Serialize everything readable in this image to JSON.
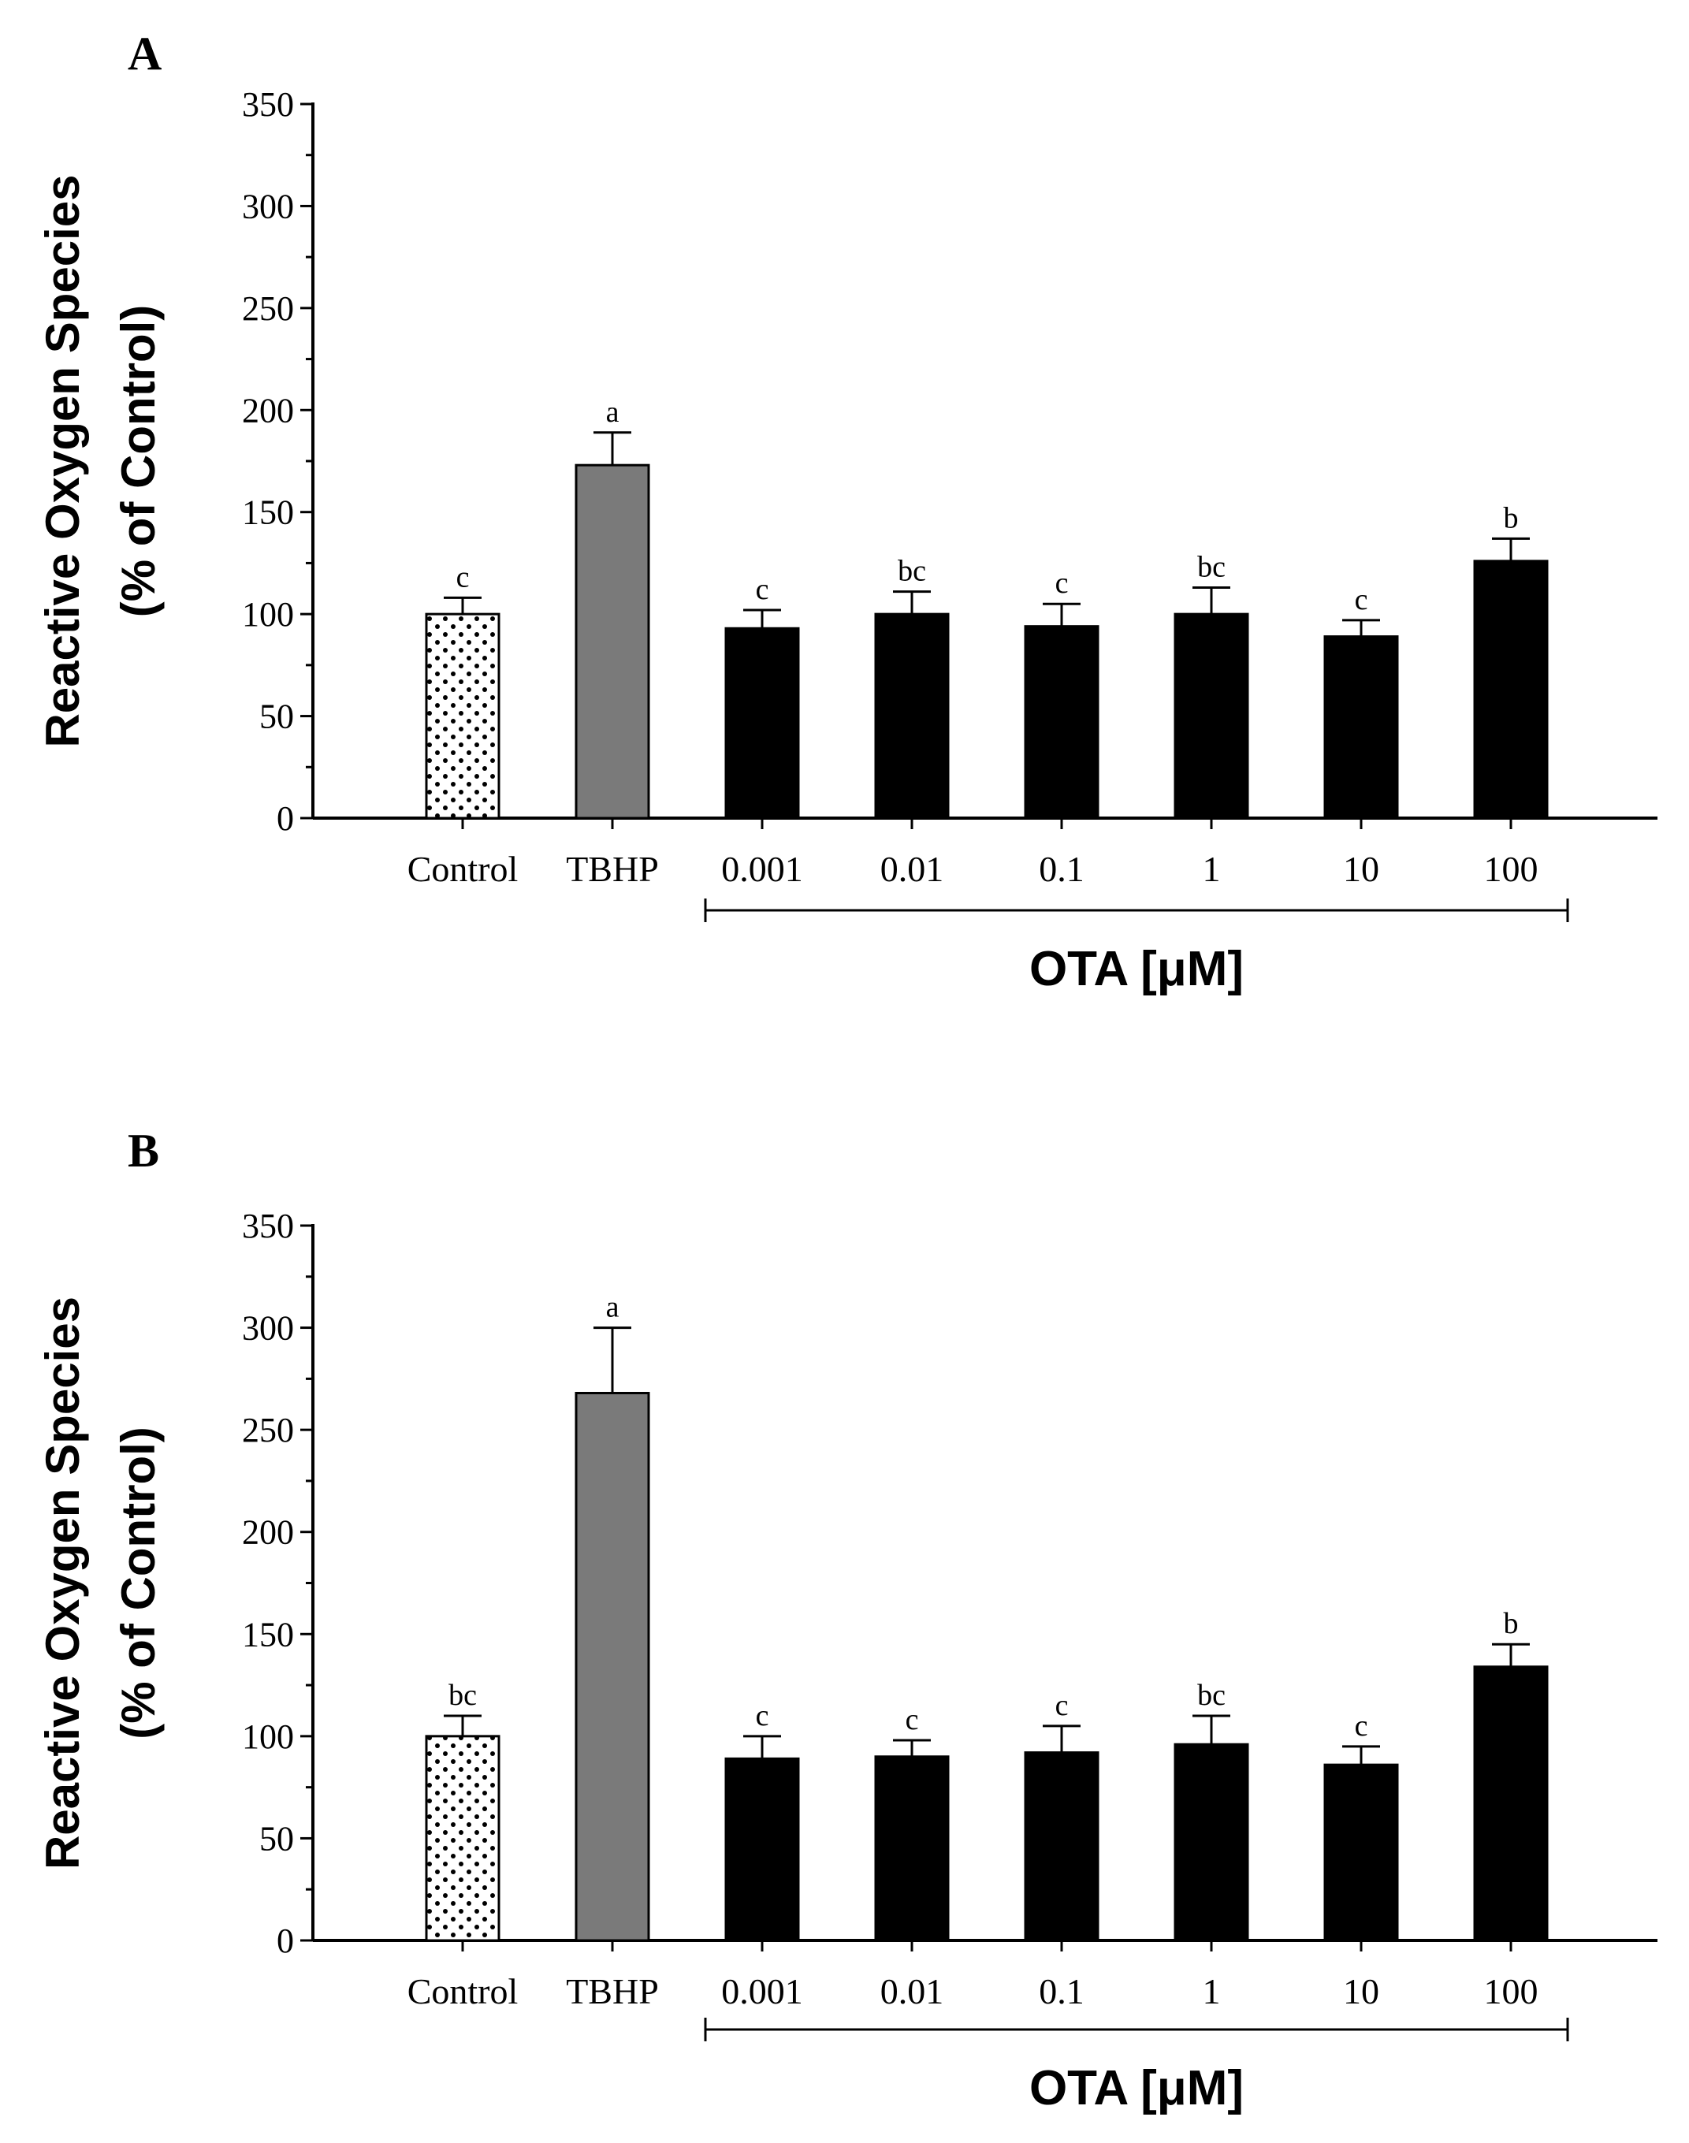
{
  "chart_data": [
    {
      "type": "bar",
      "panel": "A",
      "ylabel_line1": "Reactive Oxygen Species",
      "ylabel_line2": "(% of Control)",
      "ylim": [
        0,
        350
      ],
      "yticks": [
        0,
        50,
        100,
        150,
        200,
        250,
        300,
        350
      ],
      "categories": [
        "Control",
        "TBHP",
        "0.001",
        "0.01",
        "0.1",
        "1",
        "10",
        "100"
      ],
      "values": [
        100,
        173,
        93,
        100,
        94,
        100,
        89,
        126
      ],
      "errors": [
        8,
        16,
        9,
        11,
        11,
        13,
        8,
        11
      ],
      "significance": [
        "c",
        "a",
        "c",
        "bc",
        "c",
        "bc",
        "c",
        "b"
      ],
      "fills": [
        "dotted",
        "#7a7a7a",
        "#000000",
        "#000000",
        "#000000",
        "#000000",
        "#000000",
        "#000000"
      ],
      "group_label": "OTA [μM]",
      "group_range": [
        2,
        7
      ]
    },
    {
      "type": "bar",
      "panel": "B",
      "ylabel_line1": "Reactive Oxygen Species",
      "ylabel_line2": "(% of Control)",
      "ylim": [
        0,
        350
      ],
      "yticks": [
        0,
        50,
        100,
        150,
        200,
        250,
        300,
        350
      ],
      "categories": [
        "Control",
        "TBHP",
        "0.001",
        "0.01",
        "0.1",
        "1",
        "10",
        "100"
      ],
      "values": [
        100,
        268,
        89,
        90,
        92,
        96,
        86,
        134
      ],
      "errors": [
        10,
        32,
        11,
        8,
        13,
        14,
        9,
        11
      ],
      "significance": [
        "bc",
        "a",
        "c",
        "c",
        "c",
        "bc",
        "c",
        "b"
      ],
      "fills": [
        "dotted",
        "#7a7a7a",
        "#000000",
        "#000000",
        "#000000",
        "#000000",
        "#000000",
        "#000000"
      ],
      "group_label": "OTA [μM]",
      "group_range": [
        2,
        7
      ]
    }
  ]
}
